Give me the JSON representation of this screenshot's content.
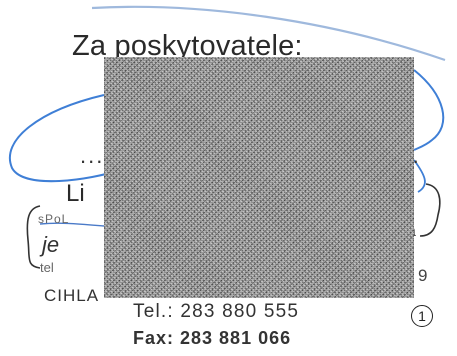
{
  "document": {
    "heading": "Za poskytovatele:",
    "dotted_line": "..........................................",
    "name_fragment": "Li",
    "right_fragment_a": "a",
    "right_fragment_9": "9",
    "stamp": {
      "top_text": "sPoL",
      "italic_fragment": "je",
      "small_fragment": "tel",
      "city_fragment": "CIHLA"
    },
    "contact": {
      "tel": "Tel.: 283 880 555",
      "fax": "Fax: 283 881 066"
    },
    "page_number": "1"
  },
  "colors": {
    "pen_ink": "#3f7fd6",
    "stamp_ink": "#444444",
    "redaction": "#8f8f8f"
  }
}
